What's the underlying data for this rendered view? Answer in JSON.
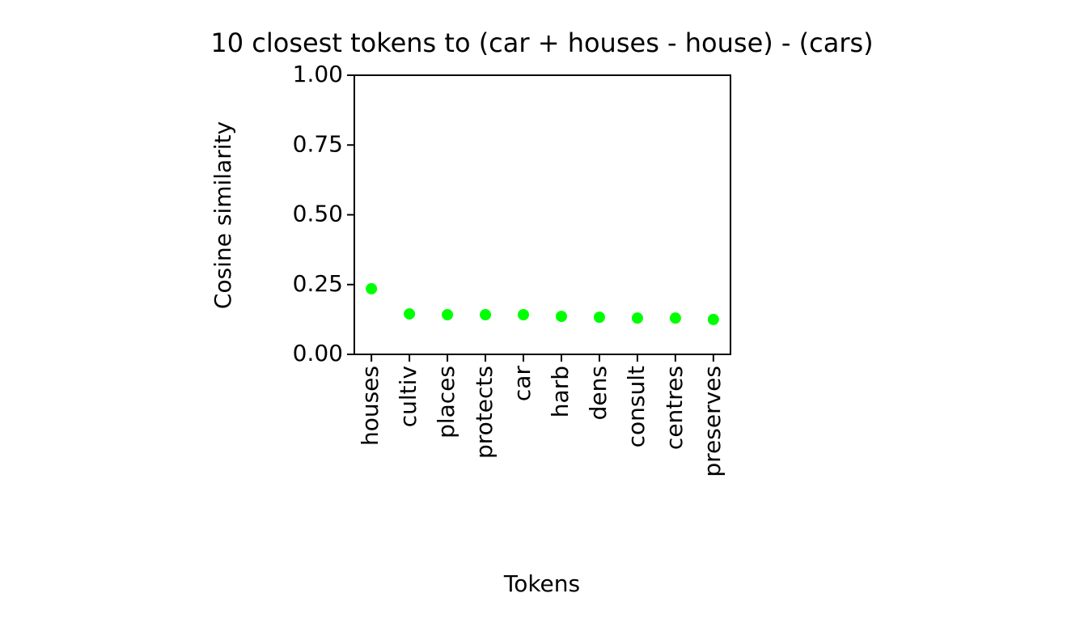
{
  "chart_data": {
    "type": "scatter",
    "title": "10 closest tokens to (car + houses - house) - (cars)",
    "x_label": "Tokens",
    "y_label": "Cosine similarity",
    "categories": [
      "houses",
      "cultiv",
      "places",
      "protects",
      "car",
      "harb",
      "dens",
      "consult",
      "centres",
      "preserves"
    ],
    "series": [
      {
        "color": "#00ff00",
        "values": [
          0.235,
          0.145,
          0.142,
          0.142,
          0.142,
          0.136,
          0.133,
          0.13,
          0.13,
          0.125
        ]
      }
    ],
    "ylim": [
      0,
      1
    ],
    "yticks": [
      {
        "value": 0,
        "label": "0.00"
      },
      {
        "value": 0.25,
        "label": "0.25"
      },
      {
        "value": 0.5,
        "label": "0.50"
      },
      {
        "value": 0.75,
        "label": "0.75"
      },
      {
        "value": 1,
        "label": "1.00"
      }
    ],
    "grid": false
  }
}
